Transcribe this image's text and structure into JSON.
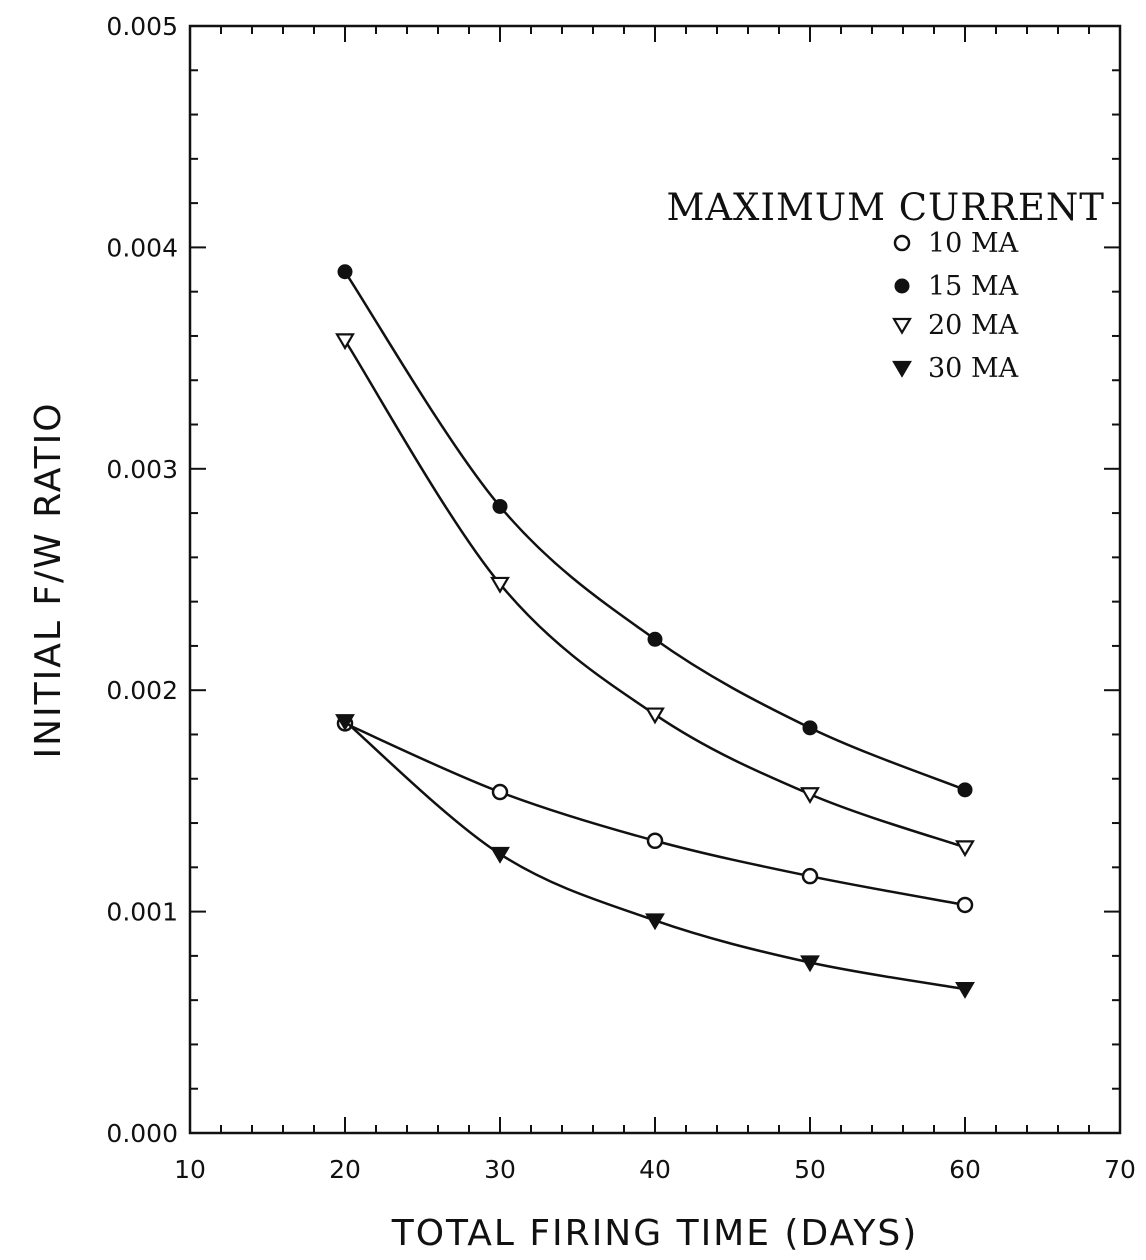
{
  "chart_data": {
    "type": "line",
    "xlabel": "TOTAL FIRING TIME (DAYS)",
    "ylabel": "INITIAL F/W RATIO",
    "xlim": [
      10,
      70
    ],
    "ylim": [
      0,
      0.005
    ],
    "x_ticks": [
      "10",
      "20",
      "30",
      "40",
      "50",
      "60",
      "70"
    ],
    "y_ticks": [
      "0.000",
      "0.001",
      "0.002",
      "0.003",
      "0.004",
      "0.005"
    ],
    "grid": false,
    "legend": {
      "title": "MAXIMUM CURRENT",
      "placement": "top-right"
    },
    "x": [
      20,
      30,
      40,
      50,
      60
    ],
    "series": [
      {
        "name": "10 MA",
        "marker": "open-circle",
        "values": [
          0.00185,
          0.00154,
          0.00132,
          0.00116,
          0.00103
        ]
      },
      {
        "name": "15 MA",
        "marker": "filled-circle",
        "values": [
          0.00389,
          0.00283,
          0.00223,
          0.00183,
          0.00155
        ]
      },
      {
        "name": "20 MA",
        "marker": "open-triangle-down",
        "values": [
          0.00358,
          0.00248,
          0.00189,
          0.00153,
          0.00129
        ]
      },
      {
        "name": "30 MA",
        "marker": "filled-triangle-down",
        "values": [
          0.00186,
          0.00126,
          0.00096,
          0.00077,
          0.00065
        ]
      }
    ]
  }
}
